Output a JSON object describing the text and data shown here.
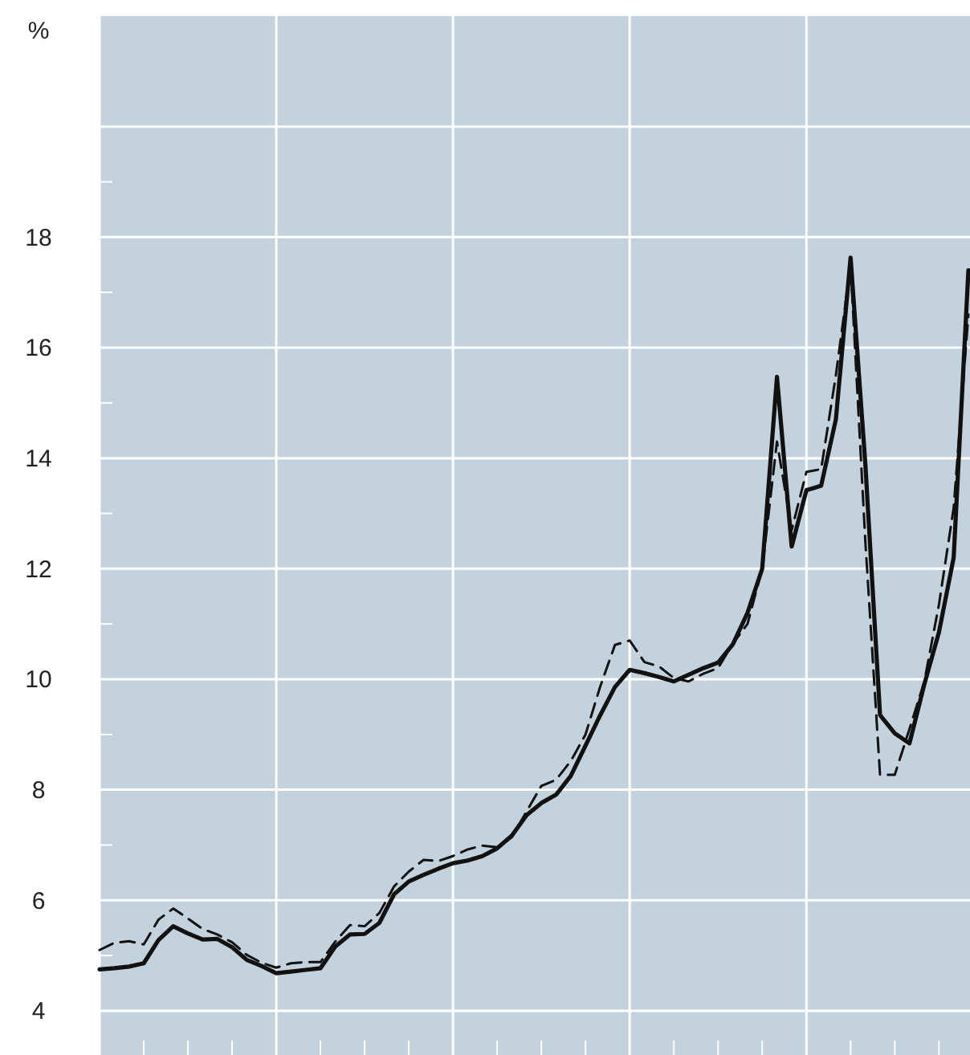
{
  "chart_data": {
    "type": "line",
    "ylabel": "%",
    "ylim": [
      3.2,
      22
    ],
    "categories": [
      null,
      null,
      null,
      null,
      null,
      null,
      null,
      null,
      null,
      null,
      null,
      null,
      null,
      null,
      null,
      null,
      null,
      null,
      null,
      null,
      null,
      null,
      null,
      null,
      null,
      null,
      null,
      null,
      null,
      null,
      null,
      null,
      null,
      null,
      null,
      null,
      null,
      null,
      null,
      null,
      null,
      null,
      null,
      null,
      null,
      null,
      null,
      null,
      null,
      null,
      null,
      null,
      null,
      null,
      null,
      null,
      null,
      null,
      null,
      null
    ],
    "yticks": [
      4,
      6,
      8,
      10,
      12,
      14,
      16,
      18,
      {
        "value": 20,
        "label": null
      }
    ],
    "grid": true,
    "marker": "none",
    "series": [
      {
        "color": "#111111",
        "line_style": "solid",
        "values": [
          4.75,
          4.77,
          4.8,
          4.86,
          5.28,
          5.53,
          5.4,
          5.29,
          5.3,
          5.15,
          4.92,
          4.81,
          4.68,
          4.71,
          4.74,
          4.77,
          5.16,
          5.38,
          5.39,
          5.59,
          6.11,
          6.34,
          6.46,
          6.57,
          6.67,
          6.72,
          6.8,
          6.94,
          7.17,
          7.54,
          7.76,
          7.91,
          8.25,
          8.8,
          9.35,
          9.86,
          10.17,
          10.11,
          10.04,
          9.96,
          10.08,
          10.2,
          10.3,
          10.63,
          11.2,
          12.0,
          15.47,
          12.4,
          13.42,
          13.5,
          14.7,
          17.63,
          13.9,
          9.35,
          9.02,
          8.84,
          9.9,
          10.85,
          12.2,
          17.4
        ]
      },
      {
        "color": "#111111",
        "line_style": "dashed",
        "values": [
          5.1,
          5.23,
          5.26,
          5.2,
          5.65,
          5.85,
          5.67,
          5.48,
          5.38,
          5.24,
          5.01,
          4.87,
          4.78,
          4.86,
          4.88,
          4.88,
          5.25,
          5.55,
          5.53,
          5.77,
          6.25,
          6.52,
          6.73,
          6.71,
          6.8,
          6.92,
          6.99,
          6.96,
          7.14,
          7.61,
          8.07,
          8.18,
          8.52,
          9.0,
          9.87,
          10.62,
          10.7,
          10.31,
          10.23,
          10.02,
          9.96,
          10.1,
          10.2,
          10.64,
          11.0,
          12.0,
          14.3,
          12.7,
          13.75,
          13.8,
          15.5,
          17.49,
          12.5,
          8.27,
          8.27,
          9.1,
          9.95,
          11.35,
          13.1,
          16.6
        ]
      }
    ]
  }
}
